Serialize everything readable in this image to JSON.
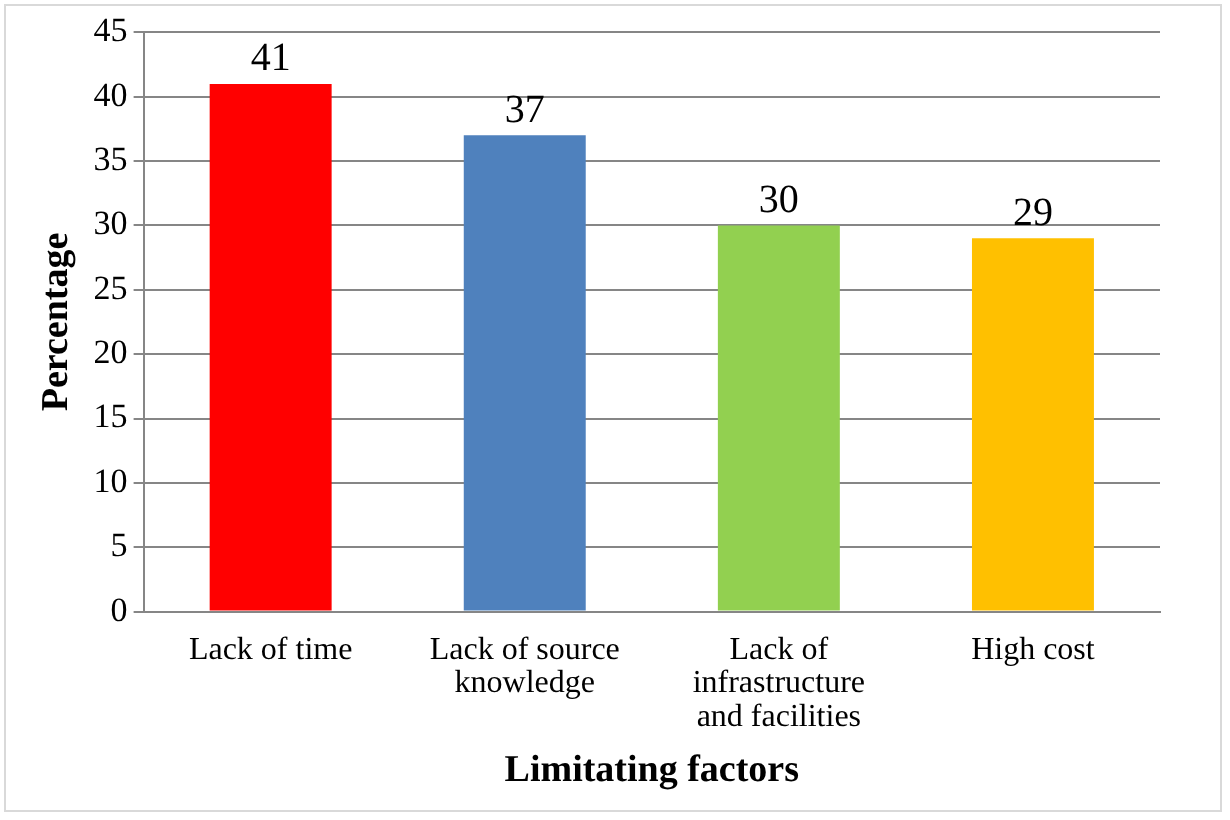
{
  "chart_data": {
    "type": "bar",
    "xlabel": "Limitating factors",
    "ylabel": "Percentage",
    "categories": [
      "Lack of time",
      "Lack of source knowledge",
      "Lack of infrastructure and facilities",
      "High cost"
    ],
    "values": [
      41,
      37,
      30,
      29
    ],
    "colors": [
      "#ff0000",
      "#4f81bd",
      "#92d050",
      "#ffc000"
    ],
    "ylim": [
      0,
      45
    ],
    "yticks": [
      0,
      5,
      10,
      15,
      20,
      25,
      30,
      35,
      40,
      45
    ],
    "grid": "y",
    "legend": false,
    "data_labels": true
  }
}
